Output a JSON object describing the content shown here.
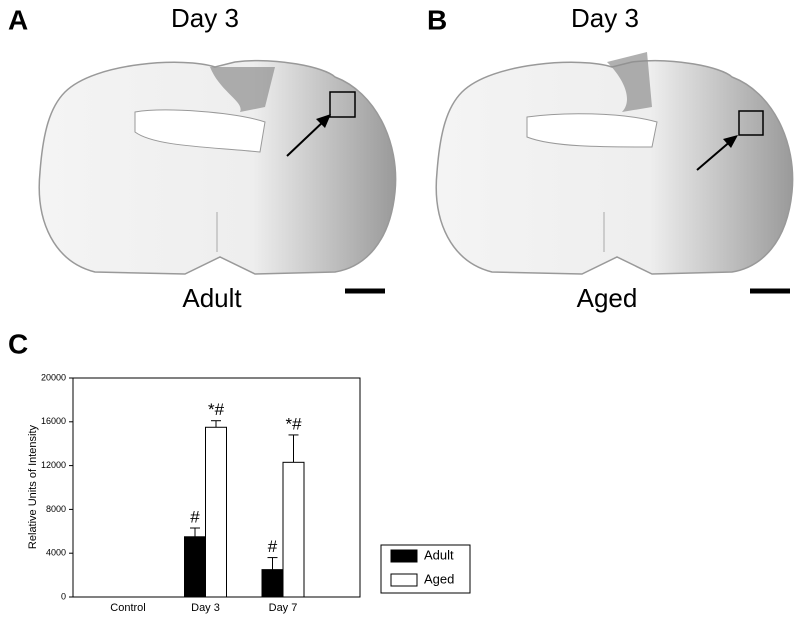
{
  "panels": [
    {
      "letter": "A",
      "title": "Day 3",
      "caption": "Adult"
    },
    {
      "letter": "B",
      "title": "Day 3",
      "caption": "Aged"
    }
  ],
  "panel_c_letter": "C",
  "chart_data": {
    "type": "bar",
    "ylabel": "Relative Units of Intensity",
    "categories": [
      "Control",
      "Day 3",
      "Day 7"
    ],
    "series": [
      {
        "name": "Adult",
        "color": "#000000",
        "values": [
          null,
          5500,
          2500
        ],
        "errors": [
          null,
          800,
          1100
        ],
        "annotations": [
          null,
          "#",
          "#"
        ]
      },
      {
        "name": "Aged",
        "color": "#ffffff",
        "values": [
          null,
          15500,
          12300
        ],
        "errors": [
          null,
          600,
          2500
        ],
        "annotations": [
          null,
          "*#",
          "*#"
        ]
      }
    ],
    "ylim": [
      0,
      20000
    ],
    "yticks": [
      0,
      4000,
      8000,
      12000,
      16000,
      20000
    ]
  }
}
